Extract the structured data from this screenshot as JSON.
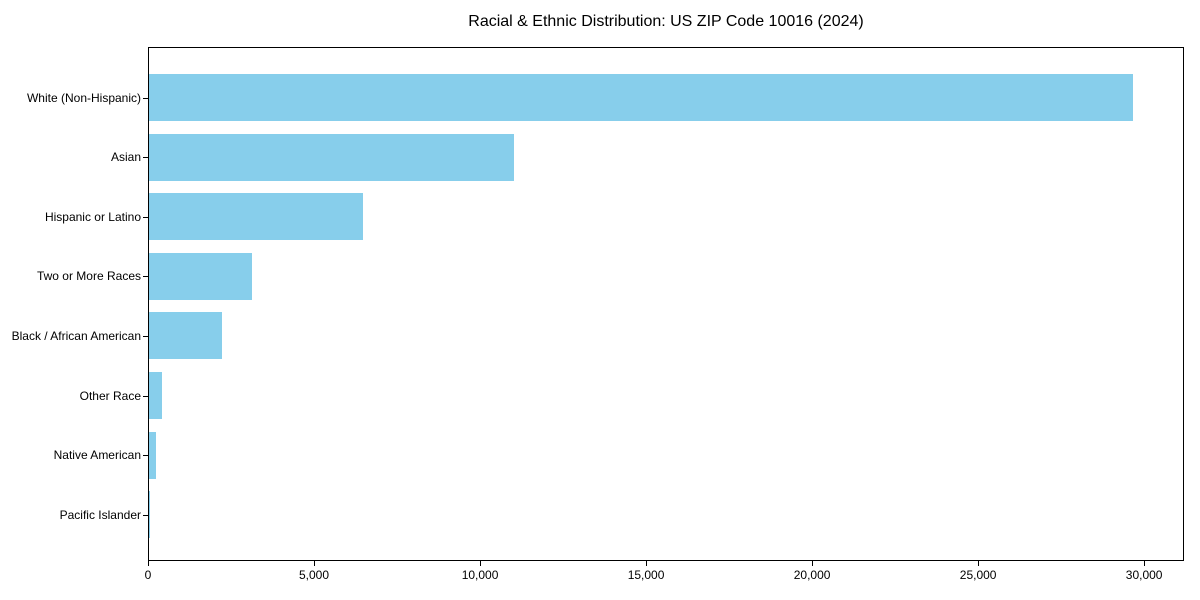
{
  "figure": {
    "background": "#FFFFFF"
  },
  "chart_data": {
    "type": "bar",
    "orientation": "horizontal",
    "title": "Racial & Ethnic Distribution: US ZIP Code 10016 (2024)",
    "categories": [
      "White (Non-Hispanic)",
      "Asian",
      "Hispanic or Latino",
      "Two or More Races",
      "Black / African American",
      "Other Race",
      "Native American",
      "Pacific Islander"
    ],
    "values": [
      29700,
      11000,
      6450,
      3100,
      2200,
      380,
      220,
      20
    ],
    "xlabel": "",
    "ylabel": "",
    "xlim": [
      0,
      31200
    ],
    "x_ticks": [
      0,
      5000,
      10000,
      15000,
      20000,
      25000,
      30000
    ],
    "x_tick_labels": [
      "0",
      "5,000",
      "10,000",
      "15,000",
      "20,000",
      "25,000",
      "30,000"
    ],
    "bar_color": "#87CEEB",
    "axis_color": "#000000",
    "text_color": "#000000",
    "grid": false,
    "legend": null
  }
}
